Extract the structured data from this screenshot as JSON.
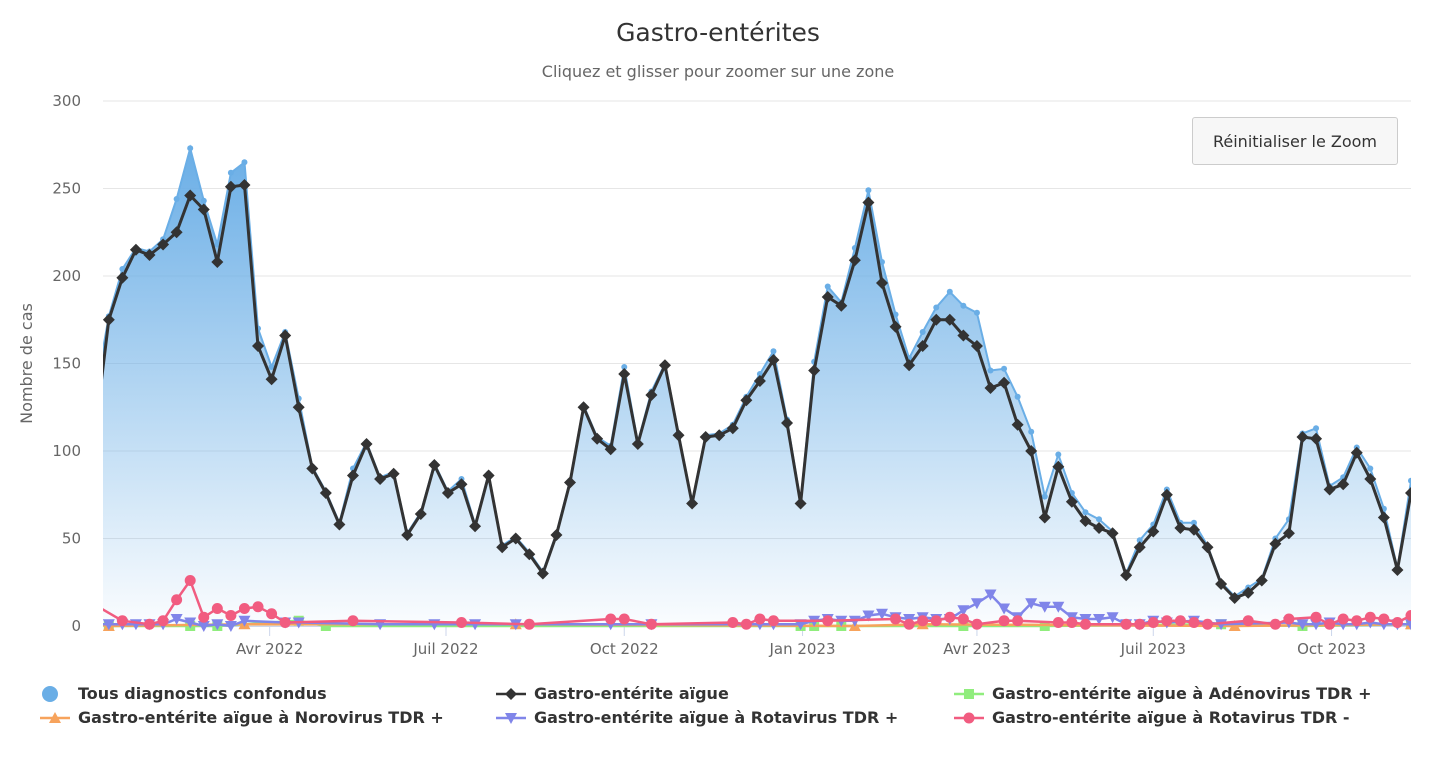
{
  "title": "Gastro-entérites",
  "subtitle": "Cliquez et glisser pour zoomer sur une zone",
  "reset_zoom_label": "Réinitialiser le Zoom",
  "chart_data": {
    "type": "line",
    "title": "Gastro-entérites",
    "ylabel": "Nombre de cas",
    "ylim": [
      0,
      300
    ],
    "yticks": [
      "0",
      "50",
      "100",
      "150",
      "200",
      "250",
      "300"
    ],
    "xticks": [
      {
        "date": "2022-04-01",
        "label": "Avr 2022"
      },
      {
        "date": "2022-07-01",
        "label": "Juil 2022"
      },
      {
        "date": "2022-10-01",
        "label": "Oct 2022"
      },
      {
        "date": "2023-01-01",
        "label": "Jan 2023"
      },
      {
        "date": "2023-04-01",
        "label": "Avr 2023"
      },
      {
        "date": "2023-07-01",
        "label": "Juil 2023"
      },
      {
        "date": "2023-10-01",
        "label": "Oct 2023"
      }
    ],
    "xlim": [
      "2022-01-05",
      "2023-11-11"
    ],
    "grid": true,
    "legend_placement": "bottom",
    "x_start": "2022-01-08",
    "x_step_days": 7,
    "series": [
      {
        "name": "Tous diagnostics confondus",
        "type": "area",
        "color": "#6aaee6",
        "first": [
          -1,
          133
        ],
        "values": [
          177,
          204,
          216,
          214,
          221,
          244,
          273,
          243,
          218,
          259,
          265,
          170,
          148,
          168,
          130,
          91,
          77,
          59,
          90,
          105,
          85,
          88,
          53,
          65,
          93,
          77,
          84,
          58,
          87,
          46,
          51,
          42,
          31,
          53,
          83,
          126,
          108,
          103,
          148,
          105,
          134,
          150,
          110,
          71,
          109,
          110,
          115,
          131,
          144,
          157,
          118,
          71,
          151,
          194,
          185,
          216,
          249,
          208,
          178,
          153,
          168,
          182,
          191,
          183,
          179,
          146,
          147,
          131,
          111,
          74,
          98,
          76,
          65,
          61,
          54,
          30,
          49,
          58,
          78,
          59,
          59,
          46,
          25,
          17,
          22,
          27,
          50,
          61,
          110,
          113,
          80,
          85,
          102,
          90,
          67,
          33,
          83
        ]
      },
      {
        "name": "Gastro-entérite aïgue",
        "type": "line",
        "color": "#333333",
        "marker": "diamond",
        "first": [
          -1,
          111
        ],
        "values": [
          175,
          199,
          215,
          212,
          218,
          225,
          246,
          238,
          208,
          251,
          252,
          160,
          141,
          166,
          125,
          90,
          76,
          58,
          86,
          104,
          84,
          87,
          52,
          64,
          92,
          76,
          81,
          57,
          86,
          45,
          50,
          41,
          30,
          52,
          82,
          125,
          107,
          101,
          144,
          104,
          132,
          149,
          109,
          70,
          108,
          109,
          113,
          129,
          140,
          152,
          116,
          70,
          146,
          188,
          183,
          209,
          242,
          196,
          171,
          149,
          160,
          175,
          175,
          166,
          160,
          136,
          139,
          115,
          100,
          62,
          91,
          71,
          60,
          56,
          53,
          29,
          45,
          54,
          75,
          56,
          55,
          45,
          24,
          16,
          19,
          26,
          47,
          53,
          108,
          107,
          78,
          81,
          99,
          84,
          62,
          32,
          76
        ]
      },
      {
        "name": "Gastro-entérite aïgue à Adénovirus TDR +",
        "type": "line",
        "color": "#90ed7d",
        "marker": "square",
        "points": [
          [
            -1,
            1
          ],
          [
            0,
            0
          ],
          [
            6,
            0
          ],
          [
            8,
            0
          ],
          [
            14,
            3
          ],
          [
            16,
            0
          ],
          [
            51,
            0
          ],
          [
            52,
            0
          ],
          [
            54,
            0
          ],
          [
            63,
            0
          ],
          [
            69,
            0
          ],
          [
            82,
            1
          ],
          [
            88,
            0
          ],
          [
            96,
            1
          ]
        ]
      },
      {
        "name": "Gastro-entérite aïgue à Norovirus TDR +",
        "type": "line",
        "color": "#f7a35c",
        "marker": "triangle",
        "points": [
          [
            -1,
            1
          ],
          [
            0,
            0
          ],
          [
            10,
            1
          ],
          [
            30,
            1
          ],
          [
            55,
            0
          ],
          [
            60,
            1
          ],
          [
            83,
            0
          ],
          [
            96,
            1
          ]
        ]
      },
      {
        "name": "Gastro-entérite aïgue à Rotavirus TDR +",
        "type": "line",
        "color": "#8085e9",
        "marker": "triangle-down",
        "points": [
          [
            -1,
            1
          ],
          [
            0,
            1
          ],
          [
            1,
            1
          ],
          [
            2,
            1
          ],
          [
            3,
            1
          ],
          [
            4,
            1
          ],
          [
            5,
            4
          ],
          [
            6,
            2
          ],
          [
            7,
            0
          ],
          [
            8,
            1
          ],
          [
            9,
            0
          ],
          [
            10,
            3
          ],
          [
            13,
            2
          ],
          [
            14,
            2
          ],
          [
            20,
            1
          ],
          [
            24,
            1
          ],
          [
            27,
            1
          ],
          [
            30,
            1
          ],
          [
            37,
            1
          ],
          [
            40,
            1
          ],
          [
            48,
            1
          ],
          [
            49,
            1
          ],
          [
            51,
            1
          ],
          [
            52,
            3
          ],
          [
            53,
            4
          ],
          [
            54,
            3
          ],
          [
            55,
            3
          ],
          [
            56,
            6
          ],
          [
            57,
            7
          ],
          [
            58,
            5
          ],
          [
            59,
            4
          ],
          [
            60,
            5
          ],
          [
            61,
            4
          ],
          [
            62,
            4
          ],
          [
            63,
            9
          ],
          [
            64,
            13
          ],
          [
            65,
            18
          ],
          [
            66,
            10
          ],
          [
            67,
            5
          ],
          [
            68,
            13
          ],
          [
            69,
            11
          ],
          [
            70,
            11
          ],
          [
            71,
            5
          ],
          [
            72,
            4
          ],
          [
            73,
            4
          ],
          [
            74,
            5
          ],
          [
            75,
            1
          ],
          [
            76,
            1
          ],
          [
            77,
            3
          ],
          [
            78,
            2
          ],
          [
            80,
            3
          ],
          [
            82,
            1
          ],
          [
            87,
            2
          ],
          [
            88,
            1
          ],
          [
            89,
            1
          ],
          [
            90,
            2
          ],
          [
            91,
            1
          ],
          [
            92,
            1
          ],
          [
            93,
            2
          ],
          [
            94,
            1
          ],
          [
            95,
            1
          ],
          [
            96,
            1
          ]
        ]
      },
      {
        "name": "Gastro-entérite aïgue à Rotavirus TDR -",
        "type": "line",
        "color": "#f15c80",
        "marker": "circle",
        "points": [
          [
            -1,
            12
          ],
          [
            1,
            3
          ],
          [
            3,
            1
          ],
          [
            4,
            3
          ],
          [
            5,
            15
          ],
          [
            6,
            26
          ],
          [
            7,
            5
          ],
          [
            8,
            10
          ],
          [
            9,
            6
          ],
          [
            10,
            10
          ],
          [
            11,
            11
          ],
          [
            12,
            7
          ],
          [
            13,
            2
          ],
          [
            18,
            3
          ],
          [
            26,
            2
          ],
          [
            31,
            1
          ],
          [
            37,
            4
          ],
          [
            38,
            4
          ],
          [
            40,
            1
          ],
          [
            46,
            2
          ],
          [
            47,
            1
          ],
          [
            48,
            4
          ],
          [
            49,
            3
          ],
          [
            53,
            3
          ],
          [
            58,
            4
          ],
          [
            59,
            1
          ],
          [
            60,
            3
          ],
          [
            61,
            3
          ],
          [
            62,
            5
          ],
          [
            63,
            4
          ],
          [
            64,
            1
          ],
          [
            66,
            3
          ],
          [
            67,
            3
          ],
          [
            70,
            2
          ],
          [
            71,
            2
          ],
          [
            72,
            1
          ],
          [
            75,
            1
          ],
          [
            76,
            1
          ],
          [
            77,
            2
          ],
          [
            78,
            3
          ],
          [
            79,
            3
          ],
          [
            80,
            2
          ],
          [
            81,
            1
          ],
          [
            84,
            3
          ],
          [
            86,
            1
          ],
          [
            87,
            4
          ],
          [
            89,
            5
          ],
          [
            90,
            1
          ],
          [
            91,
            4
          ],
          [
            92,
            3
          ],
          [
            93,
            5
          ],
          [
            94,
            4
          ],
          [
            95,
            2
          ],
          [
            96,
            6
          ]
        ]
      }
    ]
  }
}
